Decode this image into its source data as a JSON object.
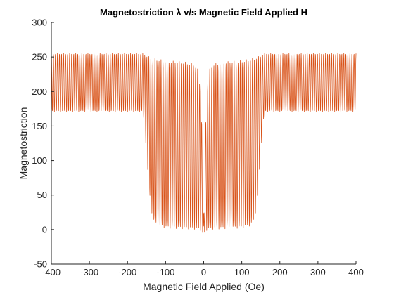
{
  "chart_data": {
    "type": "line",
    "title": "Magnetostriction λ v/s Magnetic Field Applied H",
    "xlabel": "Magnetic Field Applied (Oe)",
    "ylabel": "Magnetostriction",
    "xlim": [
      -400,
      400
    ],
    "ylim": [
      -50,
      300
    ],
    "x_ticks": [
      -400,
      -300,
      -200,
      -100,
      0,
      100,
      200,
      300,
      400
    ],
    "y_ticks": [
      -50,
      0,
      50,
      100,
      150,
      200,
      250,
      300
    ],
    "grid": false,
    "legend": "none",
    "series": [
      {
        "color": "#d95319",
        "style": "dense oscillating line between upper and lower envelopes",
        "upper_envelope": {
          "x": [
            -400,
            -160,
            -150,
            -130,
            -100,
            -50,
            -25,
            -15,
            -8,
            -3,
            0,
            3,
            8,
            15,
            25,
            50,
            100,
            130,
            150,
            160,
            400
          ],
          "y": [
            255,
            255,
            252,
            248,
            245,
            243,
            240,
            232,
            200,
            120,
            5,
            120,
            200,
            232,
            240,
            243,
            245,
            248,
            252,
            255,
            255
          ]
        },
        "lower_envelope": {
          "x": [
            -400,
            -160,
            -155,
            -150,
            -145,
            -140,
            -135,
            -130,
            -120,
            -100,
            -50,
            -10,
            -3,
            0,
            3,
            10,
            50,
            100,
            120,
            130,
            135,
            140,
            145,
            150,
            155,
            160,
            400
          ],
          "y": [
            171,
            171,
            150,
            110,
            70,
            40,
            20,
            10,
            5,
            2,
            1,
            0,
            -5,
            -20,
            -5,
            0,
            1,
            2,
            5,
            10,
            20,
            40,
            70,
            110,
            150,
            171,
            171
          ]
        }
      }
    ]
  }
}
